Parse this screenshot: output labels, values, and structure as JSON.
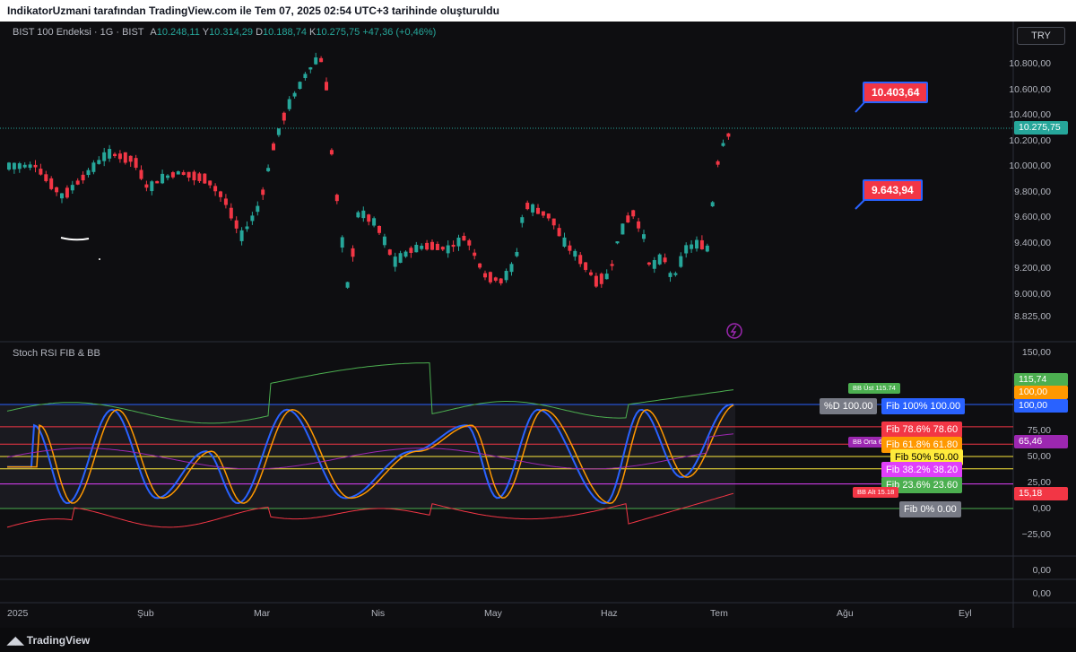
{
  "top_bar": {
    "text": "IndikatorUzmani tarafından TradingView.com ile Tem 07, 2025 02:54 UTC+3 tarihinde oluşturuldu"
  },
  "main_legend": {
    "symbol": "BIST 100 Endeksi · 1G · BIST",
    "open_label": "A",
    "open": "10.248,11",
    "high_label": "Y",
    "high": "10.314,29",
    "low_label": "D",
    "low": "10.188,74",
    "close_label": "K",
    "close": "10.275,75",
    "change": "+47,36 (+0,46%)"
  },
  "currency_button": "TRY",
  "price_axis": [
    "10.800,00",
    "10.600,00",
    "10.400,00",
    "10.200,00",
    "10.000,00",
    "9.800,00",
    "9.600,00",
    "9.400,00",
    "9.200,00",
    "9.000,00",
    "8.825,00"
  ],
  "last_price_tag": "10.275,75",
  "callouts": [
    {
      "label": "10.403,64",
      "color": "#f23645"
    },
    {
      "label": "9.643,94",
      "color": "#f23645"
    }
  ],
  "indicator": {
    "title": "Stoch RSI FIB & BB",
    "axis": [
      "150,00",
      "100,00",
      "75,00",
      "50,00",
      "25,00",
      "0,00",
      "−25,00"
    ],
    "axis_tags": [
      {
        "label": "115,74",
        "color": "#4caf50"
      },
      {
        "label": "100,00",
        "color": "#ff9800"
      },
      {
        "label": "100,00",
        "color": "#2962ff"
      },
      {
        "label": "65,46",
        "color": "#9c27b0"
      },
      {
        "label": "15,18",
        "color": "#f23645"
      }
    ],
    "level_tags": [
      {
        "label": "BB Üst 115.74",
        "color": "#4caf50"
      },
      {
        "label": "%D 100.00",
        "color": "#787b86"
      },
      {
        "label": "Fib 100% 100.00",
        "color": "#2962ff"
      },
      {
        "label": "Fib 78.6% 78.60",
        "color": "#f23645"
      },
      {
        "label": "BB Orta 65.46",
        "color": "#9c27b0"
      },
      {
        "label": "Fib 61.8% 61.80",
        "color": "#ff9800"
      },
      {
        "label": "Fib 50% 50.00",
        "color": "#ffeb3b"
      },
      {
        "label": "Fib 38.2% 38.20",
        "color": "#e040fb"
      },
      {
        "label": "Fib 23.6% 23.60",
        "color": "#4caf50"
      },
      {
        "label": "BB Alt 15.18",
        "color": "#f23645"
      },
      {
        "label": "Fib 0% 0.00",
        "color": "#787b86"
      }
    ]
  },
  "extra_panes_axis": [
    "0,00",
    "0,00"
  ],
  "time_axis": [
    "2025",
    "Şub",
    "Mar",
    "Nis",
    "May",
    "Haz",
    "Tem",
    "Ağu",
    "Eyl"
  ],
  "footer": {
    "brand": "TradingView"
  },
  "colors": {
    "up": "#26a69a",
    "down": "#f23645",
    "background": "#0e0e11"
  }
}
